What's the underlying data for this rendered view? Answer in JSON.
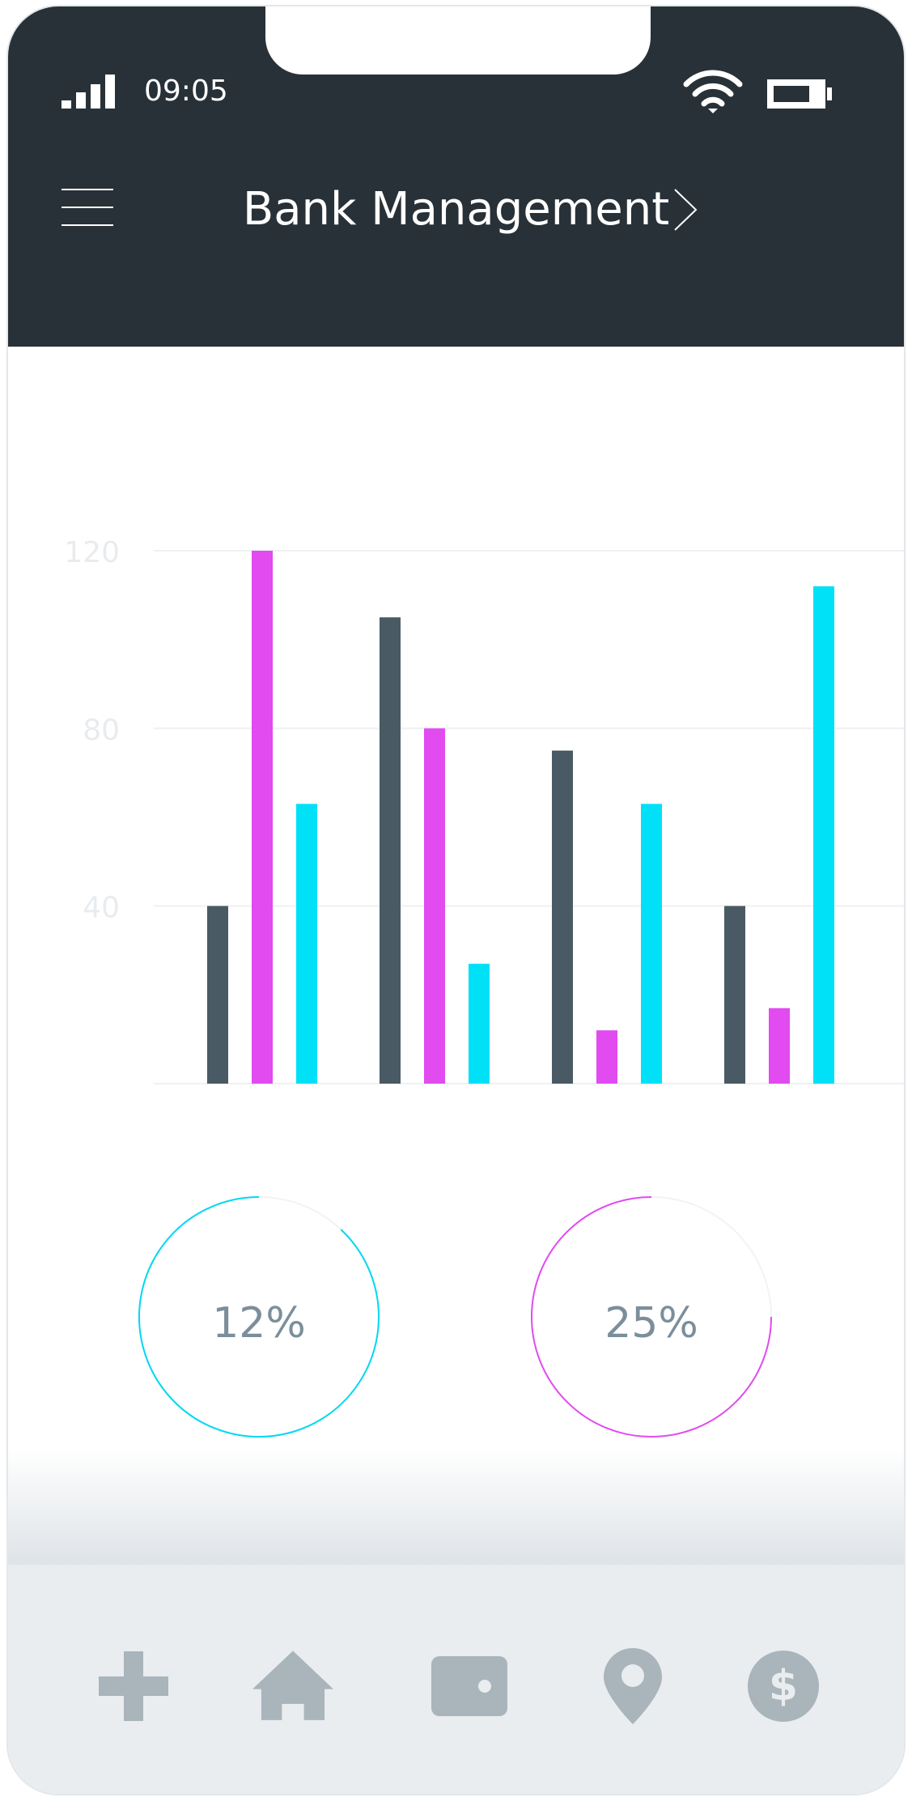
{
  "status_bar": {
    "time": "09:05",
    "signal_icon": "signal-bars-icon",
    "wifi_icon": "wifi-icon",
    "battery_icon": "battery-icon"
  },
  "header": {
    "title": "Bank Management",
    "menu_icon": "hamburger-menu-icon",
    "chevron_icon": "chevron-right-icon"
  },
  "colors": {
    "header_bg": "#283137",
    "series_dark": "#4a5a64",
    "series_magenta": "#e14bf0",
    "series_cyan": "#00e1f8",
    "axis_label": "#e8ecef",
    "nav_icon": "#aab4bb"
  },
  "chart_data": {
    "type": "bar",
    "categories": [
      "",
      "",
      "",
      ""
    ],
    "series": [
      {
        "values": [
          40,
          105,
          75,
          40
        ]
      },
      {
        "values": [
          120,
          80,
          12,
          17
        ]
      },
      {
        "values": [
          63,
          27,
          63,
          112
        ]
      }
    ],
    "yticks": [
      "40",
      "80",
      "120"
    ],
    "ylim": [
      0,
      120
    ],
    "grid": true,
    "legend": "none"
  },
  "donuts": [
    {
      "label": "12%",
      "fraction": 0.12,
      "color": "#00d8f2"
    },
    {
      "label": "25%",
      "fraction": 0.25,
      "color": "#e14bf0"
    }
  ],
  "navbar": {
    "items": [
      {
        "icon": "plus-icon"
      },
      {
        "icon": "home-icon"
      },
      {
        "icon": "wallet-icon"
      },
      {
        "icon": "location-pin-icon"
      },
      {
        "icon": "dollar-coin-icon"
      }
    ]
  }
}
